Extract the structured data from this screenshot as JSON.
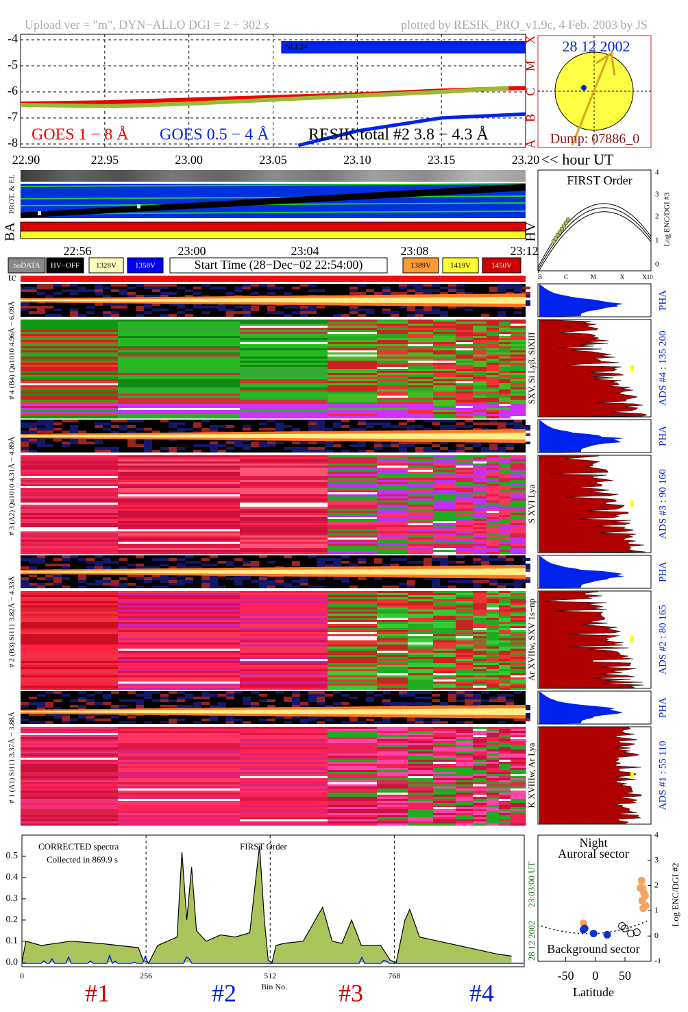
{
  "header": {
    "left": "Upload ver = \"m\", DYN−ALLO DGI =   2 ÷ 302 s",
    "right": "plotted by RESIK_PRO_v1.9c, 4 Feb. 2003 by JS"
  },
  "sun": {
    "date": "28 12 2002",
    "dump": "Dump: 07886_0"
  },
  "strip": {
    "labels": [
      "PROT. & EL",
      "BA",
      "HV"
    ],
    "times": [
      "22:56",
      "23:00",
      "23:04",
      "23:08",
      "23:12"
    ],
    "tc": "tc"
  },
  "buttons": [
    {
      "label": "noDATA",
      "color": "#888888"
    },
    {
      "label": "HV−OFF",
      "color": "#000000"
    },
    {
      "label": "1328V",
      "color": "#ffffbb"
    },
    {
      "label": "1358V",
      "color": "#0000ee"
    },
    {
      "label": "Start Time (28−Dec−02 22:54:00)",
      "color": "#ffffff"
    },
    {
      "label": "1389V",
      "color": "#ff9933"
    },
    {
      "label": "1419V",
      "color": "#ffff33"
    },
    {
      "label": "1450V",
      "color": "#cc0000"
    }
  ],
  "first_order": {
    "title": "FIRST Order",
    "y_label": "Log ENC/DGI #3",
    "yticks": [
      "0",
      "1",
      "2",
      "3",
      "4"
    ],
    "xlabels": [
      "B",
      "C",
      "M",
      "X",
      "X10"
    ]
  },
  "channels": [
    {
      "label": "# 4 (B4) Qu1010 4.96Å − 6.09Å",
      "lines": "SXV, Si Lyβ, SiXIII",
      "pha": "PHA",
      "ads": "ADS #4 :   135 200"
    },
    {
      "label": "# 3 (A2) Qu1010 4.31Å − 4.89Å",
      "lines": "S XVI Lya",
      "pha": "PHA",
      "ads": "ADS #3 :   90 160"
    },
    {
      "label": "# 2 (B3) Si111 3.82Å − 4.33Å",
      "lines": "Ar XVIIw, SXV 1s−np",
      "pha": "PHA",
      "ads": "ADS #2 :   80 165"
    },
    {
      "label": "# 1 (A1) Si111 3.37Å − 3.88Å",
      "lines": "K XVIIIw, Ar Lya",
      "pha": "PHA",
      "ads": "ADS #1 :   55 110"
    }
  ],
  "chart_data": [
    {
      "type": "line",
      "xlim": [
        22.9,
        23.2
      ],
      "xticks": [
        {
          "value": 22.9,
          "label": "22.90"
        },
        {
          "value": 22.95,
          "label": "22.95"
        },
        {
          "value": 23.0,
          "label": "23.00"
        },
        {
          "value": 23.05,
          "label": "23.05"
        },
        {
          "value": 23.1,
          "label": "23.10"
        },
        {
          "value": 23.15,
          "label": "23.15"
        },
        {
          "value": 23.2,
          "label": "23.20"
        }
      ],
      "x_label": "<< hour UT",
      "ylim": [
        -8.13,
        -3.79
      ],
      "yticks": [
        -8,
        -7,
        -6,
        -5,
        -4
      ],
      "grid": true,
      "classes": [
        {
          "value": -4,
          "label": "X"
        },
        {
          "value": -5,
          "label": "M"
        },
        {
          "value": -6,
          "label": "C"
        },
        {
          "value": -7,
          "label": "B"
        },
        {
          "value": -8,
          "label": "A"
        }
      ],
      "annotation": "NLL24",
      "series": [
        {
          "name": "GOES 1 − 8 Å",
          "color": "#ee0000",
          "label_color": "#ee0000",
          "x": [
            22.9,
            22.95,
            23.0,
            23.05,
            23.1,
            23.15,
            23.2
          ],
          "values": [
            -6.45,
            -6.4,
            -6.3,
            -6.2,
            -6.1,
            -5.95,
            -5.85
          ]
        },
        {
          "name": "GOES 0.5 − 4 Å",
          "color": "#0022ee",
          "label_color": "#0022ee",
          "x": [
            23.065,
            23.1,
            23.15,
            23.2
          ],
          "values": [
            -8.05,
            -7.5,
            -7.0,
            -6.85
          ]
        },
        {
          "name": "RESIK total #2  3.8 − 4.3 Å",
          "color": "#99bb33",
          "label_color": "#000000",
          "x": [
            22.9,
            22.955,
            23.0,
            23.05,
            23.1,
            23.15,
            23.19
          ],
          "values": [
            -6.5,
            -6.55,
            -6.45,
            -6.3,
            -6.15,
            -6.0,
            -5.85
          ]
        }
      ]
    },
    {
      "type": "area",
      "title": "CORRECTED spectra",
      "subtitle": "Collected in   869.9 s",
      "annotation": "FIRST Order",
      "x_label": "Bin No.",
      "xlim": [
        0,
        1036
      ],
      "xticks": [
        0,
        256,
        512,
        768
      ],
      "ylim": [
        -0.02,
        0.6
      ],
      "yticks": [
        {
          "value": 0,
          "label": "0.0"
        },
        {
          "value": 0.1,
          "label": "0.1"
        },
        {
          "value": 0.2,
          "label": "0.2"
        },
        {
          "value": 0.3,
          "label": "0.3"
        },
        {
          "value": 0.4,
          "label": "0.4"
        },
        {
          "value": 0.5,
          "label": "0.5"
        }
      ],
      "time": "23:03:00 UT",
      "date": "28 12 2002",
      "detectors": [
        "#1",
        "#2",
        "#3",
        "#4"
      ],
      "series": [
        {
          "color": "#a8c45a",
          "x": [
            0,
            8,
            40,
            100,
            160,
            200,
            240,
            250,
            262,
            280,
            300,
            320,
            330,
            340,
            350,
            360,
            380,
            410,
            440,
            470,
            490,
            500,
            508,
            516,
            524,
            540,
            580,
            620,
            640,
            660,
            680,
            700,
            740,
            760,
            772,
            790,
            800,
            820,
            860,
            900,
            940,
            980,
            1010
          ],
          "values": [
            0,
            0.1,
            0.08,
            0.1,
            0.09,
            0.08,
            0.07,
            0.01,
            0.0,
            0.08,
            0.1,
            0.12,
            0.52,
            0.2,
            0.45,
            0.15,
            0.1,
            0.13,
            0.12,
            0.14,
            0.55,
            0.2,
            0.01,
            0.0,
            0.08,
            0.09,
            0.1,
            0.26,
            0.1,
            0.09,
            0.2,
            0.08,
            0.08,
            0.01,
            0.0,
            0.2,
            0.25,
            0.12,
            0.1,
            0.08,
            0.06,
            0.04,
            0.03
          ]
        }
      ]
    },
    {
      "type": "scatter",
      "title": "Night",
      "annotation": "Auroral sector",
      "subtitle": "Background sector",
      "x_label": "Latitude",
      "y_label": "Log ENC/DGI #2",
      "xlim": [
        -97,
        94
      ],
      "xticks": [
        -50,
        0,
        50
      ],
      "ylim": [
        -1,
        4
      ],
      "yticks": [
        -1,
        0,
        1,
        2,
        3,
        4
      ],
      "series": [
        {
          "color": "#f4a460",
          "x": [
            78,
            80,
            82,
            76,
            79,
            81,
            84,
            85,
            -20
          ],
          "values": [
            2.2,
            1.9,
            1.7,
            1.9,
            1.4,
            1.1,
            1.6,
            1.2,
            0.5
          ]
        },
        {
          "color": "#1030d0",
          "x": [
            -20,
            -18,
            -3,
            20
          ],
          "values": [
            0.25,
            0.3,
            0.1,
            0.05
          ]
        },
        {
          "color": "#000000",
          "marker": "open",
          "x": [
            45,
            50,
            60,
            70
          ],
          "values": [
            0.4,
            0.3,
            0.1,
            0.15
          ]
        }
      ]
    }
  ]
}
